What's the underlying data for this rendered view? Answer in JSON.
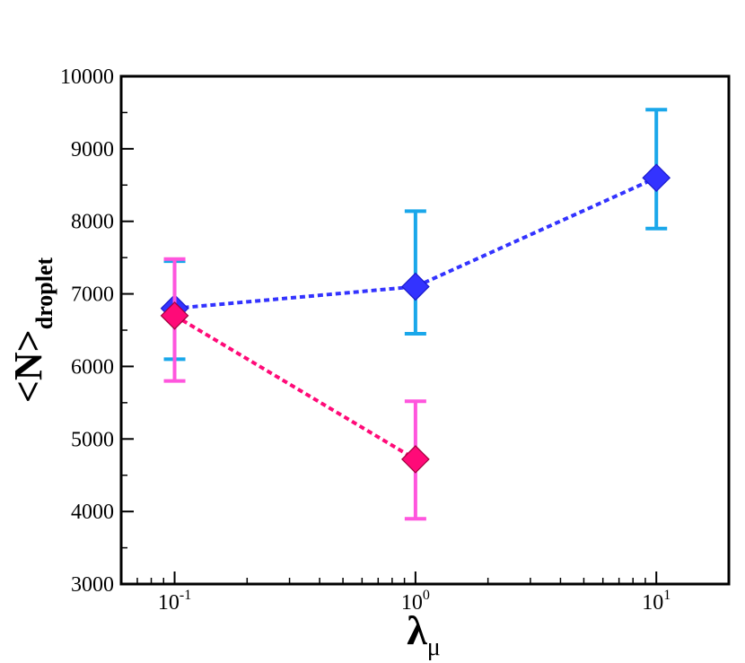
{
  "chart_data": {
    "type": "scatter",
    "xscale": "log",
    "xlim": [
      0.06,
      20
    ],
    "ylim": [
      3000,
      10000
    ],
    "x_ticks": [
      {
        "value": 0.1,
        "base": "10",
        "exp": "-1"
      },
      {
        "value": 1,
        "base": "10",
        "exp": "0"
      },
      {
        "value": 10,
        "base": "10",
        "exp": "1"
      }
    ],
    "y_ticks": [
      3000,
      4000,
      5000,
      6000,
      7000,
      8000,
      9000,
      10000
    ],
    "y_tick_labels": [
      "3000",
      "4000",
      "5000",
      "6000",
      "7000",
      "8000",
      "9000",
      "10000"
    ],
    "xlabel": {
      "main": "λ",
      "sub": "μ"
    },
    "ylabel": {
      "main": "<N>",
      "sub": "droplet"
    },
    "series": [
      {
        "marker_color": "#3333ff",
        "line_color": "#3333ff",
        "errorbar_color": "#1aa7ea",
        "x": [
          0.1,
          1,
          10
        ],
        "y": [
          6800,
          7100,
          8600
        ],
        "yerr_low": [
          6100,
          6450,
          7900
        ],
        "yerr_high": [
          7450,
          8140,
          9540
        ]
      },
      {
        "marker_color": "#ff0a78",
        "line_color": "#ff0a78",
        "errorbar_color": "#ff55dd",
        "x": [
          0.1,
          1
        ],
        "y": [
          6700,
          4720
        ],
        "yerr_low": [
          5800,
          3900
        ],
        "yerr_high": [
          7480,
          5520
        ]
      }
    ],
    "grid": false,
    "legend": "none"
  }
}
